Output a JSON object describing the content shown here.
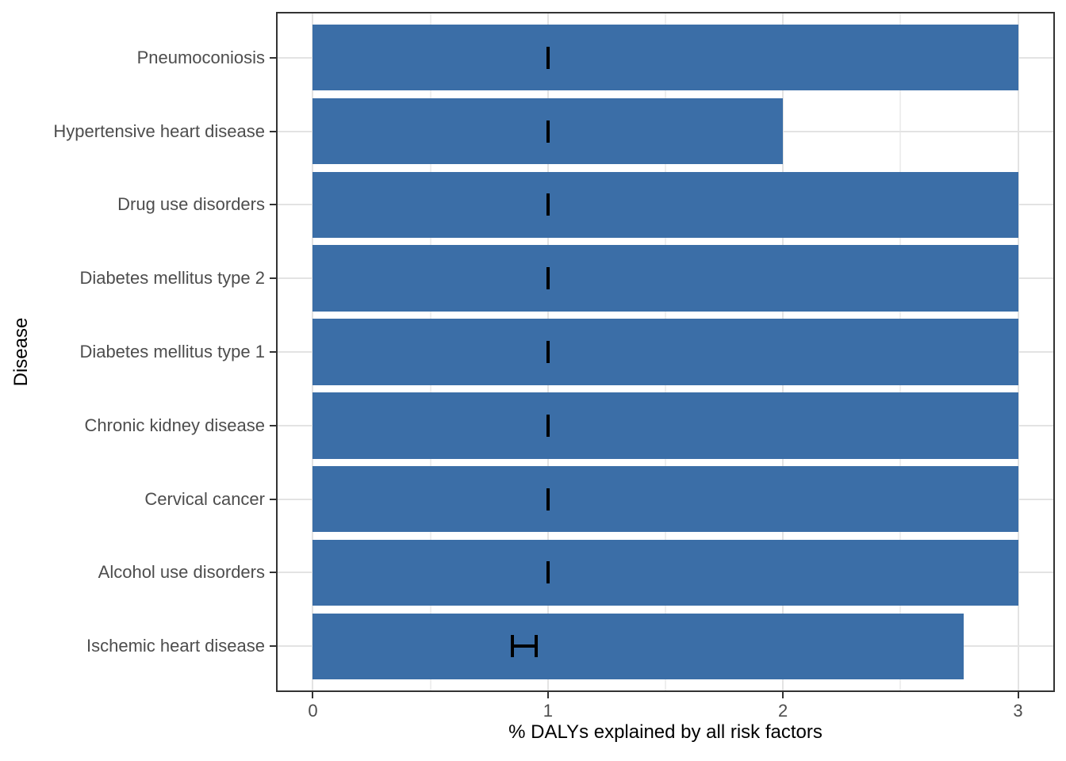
{
  "chart_data": {
    "type": "bar",
    "orientation": "horizontal",
    "title": "",
    "xlabel": "% DALYs explained by all risk factors",
    "ylabel": "Disease",
    "xlim": [
      0,
      3
    ],
    "x_ticks": [
      "0",
      "1",
      "2",
      "3"
    ],
    "x_tick_values": [
      0,
      1,
      2,
      3
    ],
    "x_minor_tick_values": [
      0.5,
      1.5,
      2.5
    ],
    "grid": "on",
    "legend": "none",
    "bar_color": "#3B6EA7",
    "error_color": "#000000",
    "rows": [
      {
        "label": "Pneumoconiosis",
        "value": 3.0,
        "ci_low": 1.0,
        "ci_high": 1.0
      },
      {
        "label": "Hypertensive heart disease",
        "value": 2.0,
        "ci_low": 1.0,
        "ci_high": 1.0
      },
      {
        "label": "Drug use disorders",
        "value": 3.0,
        "ci_low": 1.0,
        "ci_high": 1.0
      },
      {
        "label": "Diabetes mellitus type 2",
        "value": 3.0,
        "ci_low": 1.0,
        "ci_high": 1.0
      },
      {
        "label": "Diabetes mellitus type 1",
        "value": 3.0,
        "ci_low": 1.0,
        "ci_high": 1.0
      },
      {
        "label": "Chronic kidney disease",
        "value": 3.0,
        "ci_low": 1.0,
        "ci_high": 1.0
      },
      {
        "label": "Cervical cancer",
        "value": 3.0,
        "ci_low": 1.0,
        "ci_high": 1.0
      },
      {
        "label": "Alcohol use disorders",
        "value": 3.0,
        "ci_low": 1.0,
        "ci_high": 1.0
      },
      {
        "label": "Ischemic heart disease",
        "value": 2.77,
        "ci_low": 0.85,
        "ci_high": 0.95
      }
    ]
  },
  "style": {
    "background": "#FFFFFF",
    "panel_border": "#333333",
    "grid_major": "#E3E3E3",
    "grid_minor": "#EFEFEF",
    "axis_text": "#4D4D4D",
    "axis_title_text": "#000000",
    "tick_mark": "#333333"
  }
}
